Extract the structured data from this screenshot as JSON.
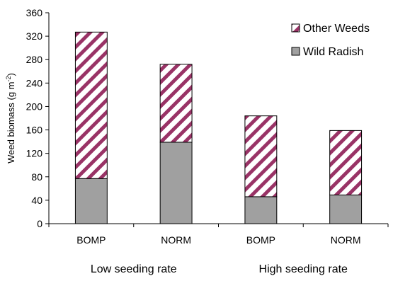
{
  "chart_data": {
    "type": "bar",
    "stacked": true,
    "categories": [
      "BOMP",
      "NORM",
      "BOMP",
      "NORM"
    ],
    "groups": [
      {
        "label": "Low seeding rate",
        "categories": [
          "BOMP",
          "NORM"
        ]
      },
      {
        "label": "High seeding rate",
        "categories": [
          "BOMP",
          "NORM"
        ]
      }
    ],
    "series": [
      {
        "name": "Wild Radish",
        "values": [
          77,
          139,
          46,
          49
        ],
        "color": "#a0a0a0",
        "pattern": "solid"
      },
      {
        "name": "Other Weeds",
        "values": [
          250,
          133,
          138,
          110
        ],
        "color": "#993366",
        "pattern": "diagonal-hatch"
      }
    ],
    "title": "",
    "xlabel": "",
    "ylabel": {
      "main": "Weed biomass (g m",
      "superscript": "-2",
      "close": ")"
    },
    "ylim": [
      0,
      360
    ],
    "yticks": [
      0,
      40,
      80,
      120,
      160,
      200,
      240,
      280,
      320,
      360
    ],
    "grid": false,
    "legend_position": "top-right"
  }
}
